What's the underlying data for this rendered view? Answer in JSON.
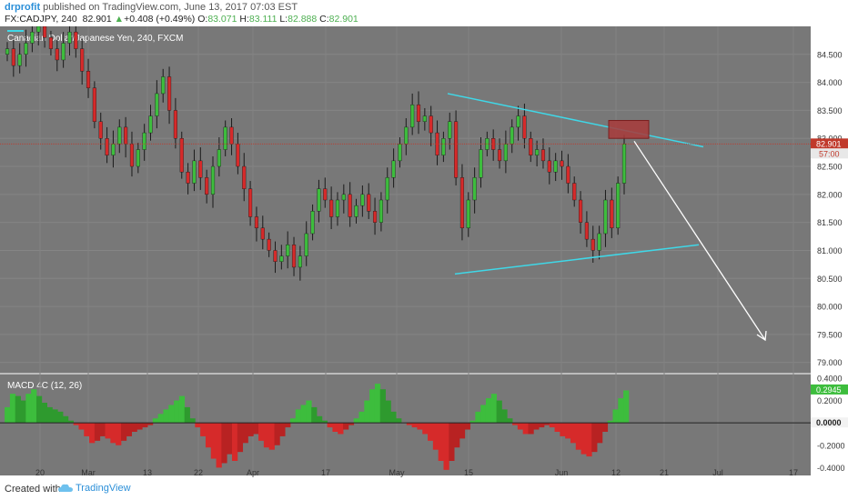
{
  "header": {
    "author": "drprofit",
    "published_text": " published on TradingView.com, June 13, 2017 07:03 EST",
    "symbol": "FX:CADJPY, 240",
    "last": "82.901",
    "change_arrow": "▲",
    "change": "+0.408 (+0.49%)",
    "open_label": "O:",
    "open": "83.071",
    "high_label": "H:",
    "high": "83.111",
    "low_label": "L:",
    "low": "82.888",
    "close_label": "C:",
    "close": "82.901"
  },
  "footer": {
    "created_with": "Created with",
    "brand": "TradingView"
  },
  "chart_data": [
    {
      "type": "candlestick",
      "title": "Canadian Dollar/Japanese Yen, 240, FXCM",
      "ylim": [
        78.8,
        85.0
      ],
      "y_ticks": [
        79.0,
        79.5,
        80.0,
        80.5,
        81.0,
        81.5,
        82.0,
        82.5,
        83.0,
        83.5,
        84.0,
        84.5
      ],
      "y_tick_labels": [
        "79.000",
        "79.500",
        "80.000",
        "80.500",
        "81.000",
        "81.500",
        "82.000",
        "82.500",
        "83.000",
        "83.500",
        "84.000",
        "84.500"
      ],
      "price_label": "82.901",
      "countdown_label": "57:00",
      "last_price": 82.901,
      "x_ticks": [
        "20",
        "Mar",
        "13",
        "22",
        "Apr",
        "17",
        "May",
        "15",
        "Jun",
        "12",
        "21",
        "Jul",
        "17"
      ],
      "colors": {
        "up": "#3dbd3d",
        "down": "#d62a2a",
        "background": "#787878",
        "trendline": "#3fd8e8",
        "projection": "#ffffff",
        "last_price_line": "#c0392b",
        "target_box": "#a83a3a"
      },
      "closes": [
        84.6,
        84.3,
        84.5,
        84.7,
        84.9,
        85.0,
        84.8,
        84.6,
        84.4,
        84.7,
        84.9,
        84.6,
        84.2,
        83.9,
        83.3,
        83.0,
        82.7,
        82.9,
        83.2,
        82.9,
        82.5,
        82.8,
        83.1,
        83.4,
        83.8,
        84.1,
        83.5,
        83.0,
        82.4,
        82.2,
        82.6,
        82.3,
        82.0,
        82.5,
        82.8,
        83.2,
        82.9,
        82.5,
        82.1,
        81.6,
        81.4,
        81.2,
        81.0,
        80.8,
        80.9,
        81.1,
        80.7,
        80.9,
        81.3,
        81.7,
        82.1,
        81.9,
        81.6,
        81.9,
        82.0,
        81.6,
        81.8,
        82.0,
        81.7,
        81.5,
        81.9,
        82.3,
        82.6,
        82.9,
        83.2,
        83.6,
        83.3,
        83.4,
        83.1,
        82.7,
        83.0,
        83.3,
        82.3,
        81.4,
        81.9,
        82.3,
        82.8,
        83.0,
        82.8,
        82.6,
        82.9,
        83.2,
        83.4,
        83.0,
        82.7,
        82.8,
        82.6,
        82.4,
        82.6,
        82.5,
        82.2,
        81.9,
        81.5,
        81.2,
        81.0,
        81.3,
        81.9,
        81.4,
        82.2,
        82.9
      ],
      "macd": {
        "title": "MACD 4C (12, 26)",
        "ylim": [
          -0.47,
          0.44
        ],
        "y_ticks": [
          0.4,
          0.2,
          0.0,
          -0.2,
          -0.4
        ],
        "y_tick_labels": [
          "0.4000",
          "0.2000",
          "0.0000",
          "-0.2000",
          "-0.4000"
        ],
        "value_label": "0.2945",
        "zero_label": "0.0000",
        "colors": {
          "rising": "#3dbd3d",
          "falling": "#d62a2a"
        },
        "values": [
          0.14,
          0.26,
          0.24,
          0.2,
          0.26,
          0.3,
          0.24,
          0.18,
          0.14,
          0.12,
          0.1,
          0.06,
          0.02,
          -0.02,
          -0.06,
          -0.12,
          -0.18,
          -0.16,
          -0.12,
          -0.14,
          -0.18,
          -0.2,
          -0.16,
          -0.12,
          -0.08,
          -0.06,
          -0.04,
          -0.02,
          0.04,
          0.08,
          0.12,
          0.16,
          0.2,
          0.24,
          0.14,
          0.04,
          -0.04,
          -0.12,
          -0.22,
          -0.32,
          -0.4,
          -0.36,
          -0.28,
          -0.34,
          -0.26,
          -0.18,
          -0.12,
          -0.1,
          -0.16,
          -0.22,
          -0.24,
          -0.2,
          -0.12,
          -0.04,
          0.04,
          0.12,
          0.16,
          0.2,
          0.14,
          0.06,
          0.02,
          -0.04,
          -0.08,
          -0.1,
          -0.06,
          -0.02,
          0.04,
          0.1,
          0.2,
          0.3,
          0.35,
          0.3,
          0.2,
          0.1,
          0.04,
          0.0,
          -0.02,
          -0.04,
          -0.06,
          -0.1,
          -0.16,
          -0.24,
          -0.34,
          -0.42,
          -0.34,
          -0.22,
          -0.14,
          -0.06,
          0.02,
          0.1,
          0.16,
          0.22,
          0.26,
          0.2,
          0.12,
          0.04,
          -0.02,
          -0.06,
          -0.1,
          -0.1,
          -0.06,
          -0.04,
          -0.02,
          -0.04,
          -0.08,
          -0.12,
          -0.14,
          -0.18,
          -0.24,
          -0.28,
          -0.3,
          -0.26,
          -0.18,
          -0.08,
          0.02,
          0.12,
          0.22,
          0.29
        ]
      }
    }
  ]
}
